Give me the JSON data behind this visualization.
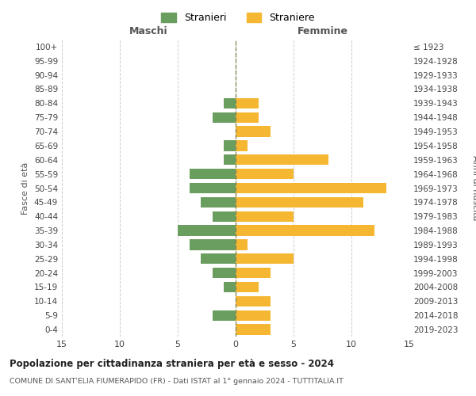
{
  "age_groups": [
    "0-4",
    "5-9",
    "10-14",
    "15-19",
    "20-24",
    "25-29",
    "30-34",
    "35-39",
    "40-44",
    "45-49",
    "50-54",
    "55-59",
    "60-64",
    "65-69",
    "70-74",
    "75-79",
    "80-84",
    "85-89",
    "90-94",
    "95-99",
    "100+"
  ],
  "birth_years": [
    "2019-2023",
    "2014-2018",
    "2009-2013",
    "2004-2008",
    "1999-2003",
    "1994-1998",
    "1989-1993",
    "1984-1988",
    "1979-1983",
    "1974-1978",
    "1969-1973",
    "1964-1968",
    "1959-1963",
    "1954-1958",
    "1949-1953",
    "1944-1948",
    "1939-1943",
    "1934-1938",
    "1929-1933",
    "1924-1928",
    "≤ 1923"
  ],
  "males": [
    0,
    2,
    0,
    1,
    2,
    3,
    4,
    5,
    2,
    3,
    4,
    4,
    1,
    1,
    0,
    2,
    1,
    0,
    0,
    0,
    0
  ],
  "females": [
    3,
    3,
    3,
    2,
    3,
    5,
    1,
    12,
    5,
    11,
    13,
    5,
    8,
    1,
    3,
    2,
    2,
    0,
    0,
    0,
    0
  ],
  "male_color": "#6a9e5e",
  "female_color": "#f5b731",
  "title": "Popolazione per cittadinanza straniera per età e sesso - 2024",
  "subtitle": "COMUNE DI SANT'ELIA FIUMERAPIDO (FR) - Dati ISTAT al 1° gennaio 2024 - TUTTITALIA.IT",
  "xlabel_left": "Maschi",
  "xlabel_right": "Femmine",
  "ylabel_left": "Fasce di età",
  "ylabel_right": "Anni di nascita",
  "legend_male": "Stranieri",
  "legend_female": "Straniere",
  "xlim": 15,
  "background_color": "#ffffff",
  "grid_color": "#cccccc"
}
